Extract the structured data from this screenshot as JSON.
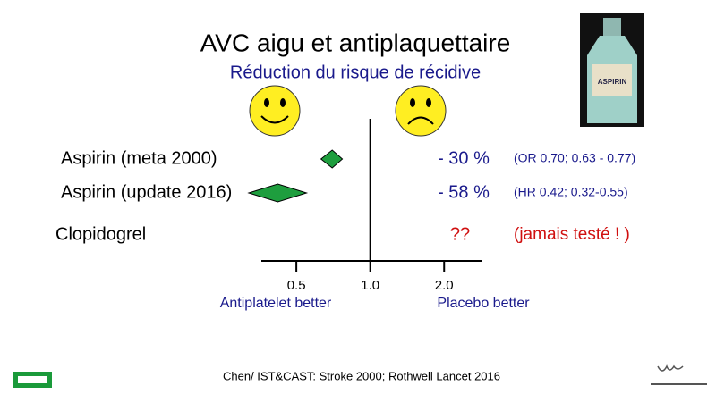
{
  "title": "AVC aigu et antiplaquettaire",
  "subtitle": "Réduction du risque de récidive",
  "chart_data": {
    "type": "forest",
    "categories": [
      "Aspirin (meta 2000)",
      "Aspirin (update 2016)",
      "Clopidogrel"
    ],
    "values": [
      0.7,
      0.42,
      null
    ],
    "lower": [
      0.63,
      0.32,
      null
    ],
    "upper": [
      0.77,
      0.55,
      null
    ],
    "reduction_labels": [
      "- 30 %",
      "- 58 %",
      "??"
    ],
    "ci_labels": [
      "(OR  0.70; 0.63 - 0.77)",
      "(HR 0.42; 0.32-0.55)",
      "(jamais testé ! )"
    ],
    "text_colors": [
      "#1a1a8c",
      "#1a1a8c",
      "#d01010"
    ],
    "color": "#1e9e3e",
    "log_x": true,
    "xlim": [
      0.36,
      2.84
    ],
    "xticks": [
      0.5,
      {
        "value": 1,
        "label": "1.0"
      },
      {
        "value": 2,
        "label": "2.0"
      }
    ],
    "xlabels": [
      "Antiplatelet better",
      "Placebo better"
    ]
  },
  "footnote": "Chen/ IST&CAST: Stroke 2000; Rothwell Lancet 2016",
  "bottle_label": "ASPIRIN"
}
